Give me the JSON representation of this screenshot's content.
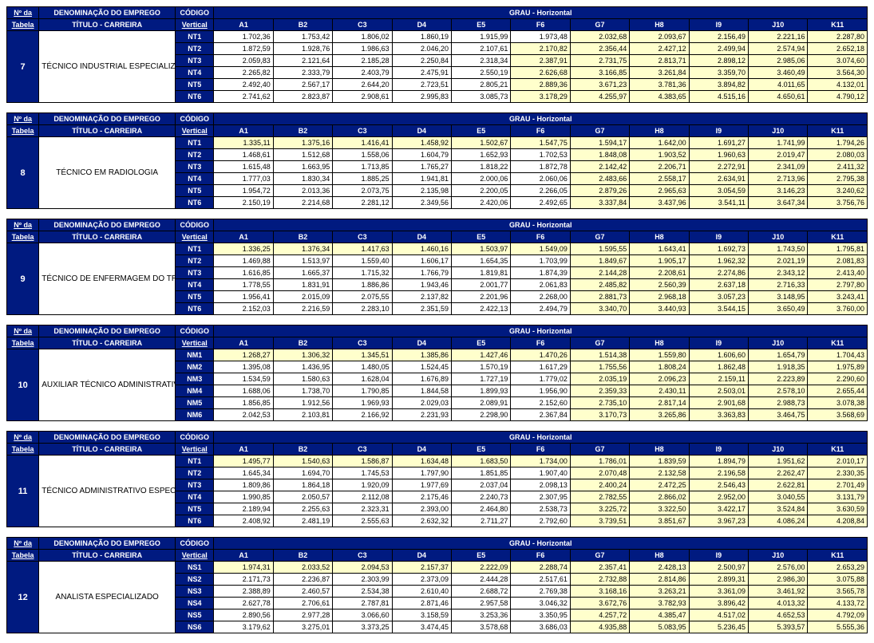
{
  "labels": {
    "no_line1": "Nº da",
    "no_line2": "Tabela",
    "denom_line1": "DENOMINAÇÃO DO EMPREGO",
    "denom_line2": "TÍTULO - CARREIRA",
    "codigo_line1": "CÓDIGO",
    "codigo_line2": "Vertical",
    "grau": "GRAU - Horizontal"
  },
  "grades": [
    "A1",
    "B2",
    "C3",
    "D4",
    "E5",
    "F6",
    "G7",
    "H8",
    "I9",
    "J10",
    "K11"
  ],
  "styling": {
    "header_bg": "#001a80",
    "header_fg": "#ffffff",
    "highlight_bg": "#ffffcc",
    "cell_bg": "#ffffff",
    "font_size_pt": 9
  },
  "tables": [
    {
      "number": "7",
      "title": "TÉCNICO INDUSTRIAL ESPECIALIZADO",
      "code_prefix": "NT",
      "rows": [
        {
          "code": "NT1",
          "hl_from": 6,
          "vals": [
            "1.702,36",
            "1.753,42",
            "1.806,02",
            "1.860,19",
            "1.915,99",
            "1.973,48",
            "2.032,68",
            "2.093,67",
            "2.156,49",
            "2.221,16",
            "2.287,80"
          ]
        },
        {
          "code": "NT2",
          "hl_from": 5,
          "vals": [
            "1.872,59",
            "1.928,76",
            "1.986,63",
            "2.046,20",
            "2.107,61",
            "2.170,82",
            "2.356,44",
            "2.427,12",
            "2.499,94",
            "2.574,94",
            "2.652,18"
          ]
        },
        {
          "code": "NT3",
          "hl_from": 5,
          "vals": [
            "2.059,83",
            "2.121,64",
            "2.185,28",
            "2.250,84",
            "2.318,34",
            "2.387,91",
            "2.731,75",
            "2.813,71",
            "2.898,12",
            "2.985,06",
            "3.074,60"
          ]
        },
        {
          "code": "NT4",
          "hl_from": 5,
          "vals": [
            "2.265,82",
            "2.333,79",
            "2.403,79",
            "2.475,91",
            "2.550,19",
            "2.626,68",
            "3.166,85",
            "3.261,84",
            "3.359,70",
            "3.460,49",
            "3.564,30"
          ]
        },
        {
          "code": "NT5",
          "hl_from": 5,
          "vals": [
            "2.492,40",
            "2.567,17",
            "2.644,20",
            "2.723,51",
            "2.805,21",
            "2.889,36",
            "3.671,23",
            "3.781,36",
            "3.894,82",
            "4.011,65",
            "4.132,01"
          ]
        },
        {
          "code": "NT6",
          "hl_from": 5,
          "vals": [
            "2.741,62",
            "2.823,87",
            "2.908,61",
            "2.995,83",
            "3.085,73",
            "3.178,29",
            "4.255,97",
            "4.383,65",
            "4.515,16",
            "4.650,61",
            "4.790,12"
          ]
        }
      ]
    },
    {
      "number": "8",
      "title": "TÉCNICO EM RADIOLOGIA",
      "code_prefix": "NT",
      "rows": [
        {
          "code": "NT1",
          "hl_from": 0,
          "vals": [
            "1.335,11",
            "1.375,16",
            "1.416,41",
            "1.458,92",
            "1.502,67",
            "1.547,75",
            "1.594,17",
            "1.642,00",
            "1.691,27",
            "1.741,99",
            "1.794,26"
          ]
        },
        {
          "code": "NT2",
          "hl_from": 6,
          "vals": [
            "1.468,61",
            "1.512,68",
            "1.558,06",
            "1.604,79",
            "1.652,93",
            "1.702,53",
            "1.848,08",
            "1.903,52",
            "1.960,63",
            "2.019,47",
            "2.080,03"
          ]
        },
        {
          "code": "NT3",
          "hl_from": 6,
          "vals": [
            "1.615,48",
            "1.663,95",
            "1.713,85",
            "1.765,27",
            "1.818,22",
            "1.872,78",
            "2.142,42",
            "2.206,71",
            "2.272,91",
            "2.341,09",
            "2.411,32"
          ]
        },
        {
          "code": "NT4",
          "hl_from": 6,
          "vals": [
            "1.777,03",
            "1.830,34",
            "1.885,25",
            "1.941,81",
            "2.000,06",
            "2.060,06",
            "2.483,66",
            "2.558,17",
            "2.634,91",
            "2.713,96",
            "2.795,38"
          ]
        },
        {
          "code": "NT5",
          "hl_from": 6,
          "vals": [
            "1.954,72",
            "2.013,36",
            "2.073,75",
            "2.135,98",
            "2.200,05",
            "2.266,05",
            "2.879,26",
            "2.965,63",
            "3.054,59",
            "3.146,23",
            "3.240,62"
          ]
        },
        {
          "code": "NT6",
          "hl_from": 6,
          "vals": [
            "2.150,19",
            "2.214,68",
            "2.281,12",
            "2.349,56",
            "2.420,06",
            "2.492,65",
            "3.337,84",
            "3.437,96",
            "3.541,11",
            "3.647,34",
            "3.756,76"
          ]
        }
      ]
    },
    {
      "number": "9",
      "title": "TÉCNICO DE ENFERMAGEM DO TRABALHO",
      "code_prefix": "NT",
      "rows": [
        {
          "code": "NT1",
          "hl_from": 0,
          "vals": [
            "1.336,25",
            "1.376,34",
            "1.417,63",
            "1.460,16",
            "1.503,97",
            "1.549,09",
            "1.595,55",
            "1.643,41",
            "1.692,73",
            "1.743,50",
            "1.795,81"
          ]
        },
        {
          "code": "NT2",
          "hl_from": 6,
          "vals": [
            "1.469,88",
            "1.513,97",
            "1.559,40",
            "1.606,17",
            "1.654,35",
            "1.703,99",
            "1.849,67",
            "1.905,17",
            "1.962,32",
            "2.021,19",
            "2.081,83"
          ]
        },
        {
          "code": "NT3",
          "hl_from": 6,
          "vals": [
            "1.616,85",
            "1.665,37",
            "1.715,32",
            "1.766,79",
            "1.819,81",
            "1.874,39",
            "2.144,28",
            "2.208,61",
            "2.274,86",
            "2.343,12",
            "2.413,40"
          ]
        },
        {
          "code": "NT4",
          "hl_from": 6,
          "vals": [
            "1.778,55",
            "1.831,91",
            "1.886,86",
            "1.943,46",
            "2.001,77",
            "2.061,83",
            "2.485,82",
            "2.560,39",
            "2.637,18",
            "2.716,33",
            "2.797,80"
          ]
        },
        {
          "code": "NT5",
          "hl_from": 6,
          "vals": [
            "1.956,41",
            "2.015,09",
            "2.075,55",
            "2.137,82",
            "2.201,96",
            "2.268,00",
            "2.881,73",
            "2.968,18",
            "3.057,23",
            "3.148,95",
            "3.243,41"
          ]
        },
        {
          "code": "NT6",
          "hl_from": 6,
          "vals": [
            "2.152,03",
            "2.216,59",
            "2.283,10",
            "2.351,59",
            "2.422,13",
            "2.494,79",
            "3.340,70",
            "3.440,93",
            "3.544,15",
            "3.650,49",
            "3.760,00"
          ]
        }
      ]
    },
    {
      "number": "10",
      "title": "AUXILIAR TÉCNICO ADMINISTRATIVO",
      "code_prefix": "NM",
      "rows": [
        {
          "code": "NM1",
          "hl_from": 0,
          "vals": [
            "1.268,27",
            "1.306,32",
            "1.345,51",
            "1.385,86",
            "1.427,46",
            "1.470,26",
            "1.514,38",
            "1.559,80",
            "1.606,60",
            "1.654,79",
            "1.704,43"
          ]
        },
        {
          "code": "NM2",
          "hl_from": 6,
          "vals": [
            "1.395,08",
            "1.436,95",
            "1.480,05",
            "1.524,45",
            "1.570,19",
            "1.617,29",
            "1.755,56",
            "1.808,24",
            "1.862,48",
            "1.918,35",
            "1.975,89"
          ]
        },
        {
          "code": "NM3",
          "hl_from": 6,
          "vals": [
            "1.534,59",
            "1.580,63",
            "1.628,04",
            "1.676,89",
            "1.727,19",
            "1.779,02",
            "2.035,19",
            "2.096,23",
            "2.159,11",
            "2.223,89",
            "2.290,60"
          ]
        },
        {
          "code": "NM4",
          "hl_from": 6,
          "vals": [
            "1.688,06",
            "1.738,70",
            "1.790,85",
            "1.844,58",
            "1.899,93",
            "1.956,90",
            "2.359,33",
            "2.430,11",
            "2.503,01",
            "2.578,10",
            "2.655,44"
          ]
        },
        {
          "code": "NM5",
          "hl_from": 6,
          "vals": [
            "1.856,85",
            "1.912,56",
            "1.969,93",
            "2.029,03",
            "2.089,91",
            "2.152,60",
            "2.735,10",
            "2.817,14",
            "2.901,68",
            "2.988,73",
            "3.078,38"
          ]
        },
        {
          "code": "NM6",
          "hl_from": 6,
          "vals": [
            "2.042,53",
            "2.103,81",
            "2.166,92",
            "2.231,93",
            "2.298,90",
            "2.367,84",
            "3.170,73",
            "3.265,86",
            "3.363,83",
            "3.464,75",
            "3.568,69"
          ]
        }
      ]
    },
    {
      "number": "11",
      "title": "TÉCNICO ADMINISTRATIVO ESPECIALIZADO",
      "code_prefix": "NT",
      "rows": [
        {
          "code": "NT1",
          "hl_from": 0,
          "vals": [
            "1.495,77",
            "1.540,63",
            "1.586,87",
            "1.634,48",
            "1.683,50",
            "1.734,00",
            "1.786,01",
            "1.839,59",
            "1.894,79",
            "1.951,62",
            "2.010,17"
          ]
        },
        {
          "code": "NT2",
          "hl_from": 6,
          "vals": [
            "1.645,34",
            "1.694,70",
            "1.745,53",
            "1.797,90",
            "1.851,85",
            "1.907,40",
            "2.070,48",
            "2.132,58",
            "2.196,58",
            "2.262,47",
            "2.330,35"
          ]
        },
        {
          "code": "NT3",
          "hl_from": 6,
          "vals": [
            "1.809,86",
            "1.864,18",
            "1.920,09",
            "1.977,69",
            "2.037,04",
            "2.098,13",
            "2.400,24",
            "2.472,25",
            "2.546,43",
            "2.622,81",
            "2.701,49"
          ]
        },
        {
          "code": "NT4",
          "hl_from": 6,
          "vals": [
            "1.990,85",
            "2.050,57",
            "2.112,08",
            "2.175,46",
            "2.240,73",
            "2.307,95",
            "2.782,55",
            "2.866,02",
            "2.952,00",
            "3.040,55",
            "3.131,79"
          ]
        },
        {
          "code": "NT5",
          "hl_from": 6,
          "vals": [
            "2.189,94",
            "2.255,63",
            "2.323,31",
            "2.393,00",
            "2.464,80",
            "2.538,73",
            "3.225,72",
            "3.322,50",
            "3.422,17",
            "3.524,84",
            "3.630,59"
          ]
        },
        {
          "code": "NT6",
          "hl_from": 6,
          "vals": [
            "2.408,92",
            "2.481,19",
            "2.555,63",
            "2.632,32",
            "2.711,27",
            "2.792,60",
            "3.739,51",
            "3.851,67",
            "3.967,23",
            "4.086,24",
            "4.208,84"
          ]
        }
      ]
    },
    {
      "number": "12",
      "title": "ANALISTA ESPECIALIZADO",
      "code_prefix": "NS",
      "rows": [
        {
          "code": "NS1",
          "hl_from": 0,
          "vals": [
            "1.974,31",
            "2.033,52",
            "2.094,53",
            "2.157,37",
            "2.222,09",
            "2.288,74",
            "2.357,41",
            "2.428,13",
            "2.500,97",
            "2.576,00",
            "2.653,29"
          ]
        },
        {
          "code": "NS2",
          "hl_from": 6,
          "vals": [
            "2.171,73",
            "2.236,87",
            "2.303,99",
            "2.373,09",
            "2.444,28",
            "2.517,61",
            "2.732,88",
            "2.814,86",
            "2.899,31",
            "2.986,30",
            "3.075,88"
          ]
        },
        {
          "code": "NS3",
          "hl_from": 6,
          "vals": [
            "2.388,89",
            "2.460,57",
            "2.534,38",
            "2.610,40",
            "2.688,72",
            "2.769,38",
            "3.168,16",
            "3.263,21",
            "3.361,09",
            "3.461,92",
            "3.565,78"
          ]
        },
        {
          "code": "NS4",
          "hl_from": 6,
          "vals": [
            "2.627,78",
            "2.706,61",
            "2.787,81",
            "2.871,46",
            "2.957,58",
            "3.046,32",
            "3.672,76",
            "3.782,93",
            "3.896,42",
            "4.013,32",
            "4.133,72"
          ]
        },
        {
          "code": "NS5",
          "hl_from": 6,
          "vals": [
            "2.890,56",
            "2.977,28",
            "3.066,60",
            "3.158,59",
            "3.253,36",
            "3.350,95",
            "4.257,72",
            "4.385,47",
            "4.517,02",
            "4.652,53",
            "4.792,09"
          ]
        },
        {
          "code": "NS6",
          "hl_from": 6,
          "vals": [
            "3.179,62",
            "3.275,01",
            "3.373,25",
            "3.474,45",
            "3.578,68",
            "3.686,03",
            "4.935,88",
            "5.083,95",
            "5.236,45",
            "5.393,57",
            "5.555,36"
          ]
        }
      ]
    }
  ]
}
